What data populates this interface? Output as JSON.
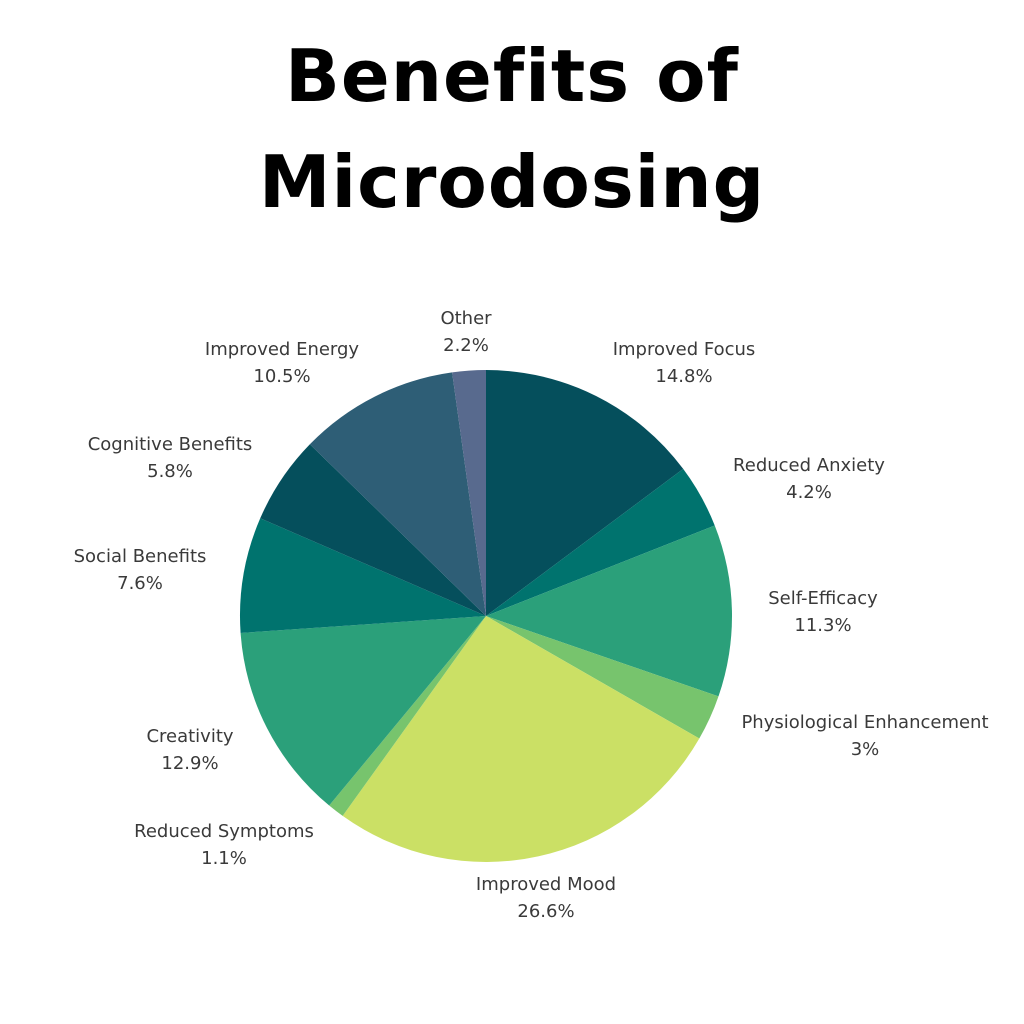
{
  "title_lines": [
    "Benefits of",
    "Microdosing"
  ],
  "colors": {
    "dark_teal": "#054f5c",
    "teal": "#00736e",
    "green": "#2ba07a",
    "light_green": "#77c46d",
    "lime": "#cbe065",
    "slate_blue": "#2e5e76",
    "purple_grey": "#586a8e"
  },
  "chart_data": {
    "type": "pie",
    "title": "Benefits of Microdosing",
    "slices": [
      {
        "label": "Improved Focus",
        "value": 14.8,
        "display": "14.8%",
        "color": "#054f5c"
      },
      {
        "label": "Reduced Anxiety",
        "value": 4.2,
        "display": "4.2%",
        "color": "#00736e"
      },
      {
        "label": "Self-Efficacy",
        "value": 11.3,
        "display": "11.3%",
        "color": "#2ba07a"
      },
      {
        "label": "Physiological Enhancement",
        "value": 3,
        "display": "3%",
        "color": "#77c46d"
      },
      {
        "label": "Improved Mood",
        "value": 26.6,
        "display": "26.6%",
        "color": "#cbe065"
      },
      {
        "label": "Reduced Symptoms",
        "value": 1.1,
        "display": "1.1%",
        "color": "#77c46d"
      },
      {
        "label": "Creativity",
        "value": 12.9,
        "display": "12.9%",
        "color": "#2ba07a"
      },
      {
        "label": "Social Benefits",
        "value": 7.6,
        "display": "7.6%",
        "color": "#00736e"
      },
      {
        "label": "Cognitive Benefits",
        "value": 5.8,
        "display": "5.8%",
        "color": "#054f5c"
      },
      {
        "label": "Improved Energy",
        "value": 10.5,
        "display": "10.5%",
        "color": "#2e5e76"
      },
      {
        "label": "Other",
        "value": 2.2,
        "display": "2.2%",
        "color": "#586a8e"
      }
    ],
    "legend": "none",
    "start_angle": "top, clockwise"
  }
}
